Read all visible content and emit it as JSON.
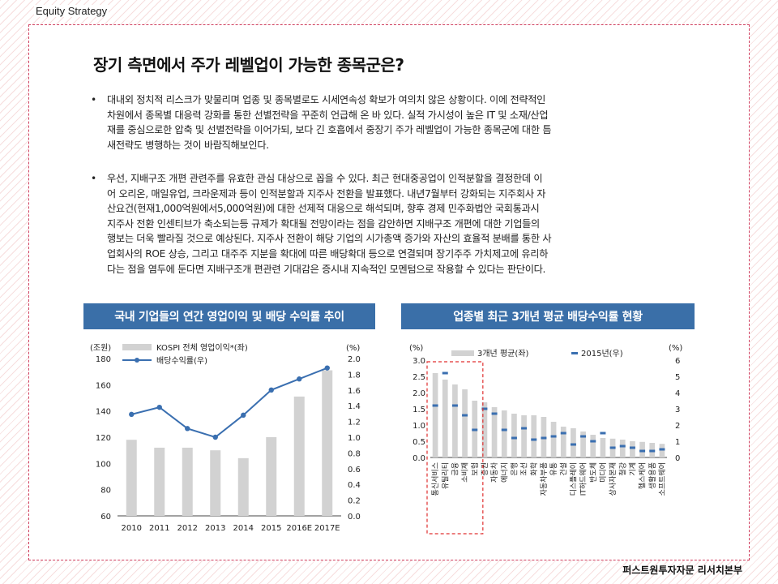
{
  "header": {
    "section_label": "Equity Strategy"
  },
  "title": "장기 측면에서 주가 레벨업이 가능한 종목군은?",
  "paragraphs": [
    {
      "bullet": "•",
      "lines": [
        "대내외 정치적 리스크가 맞물리며 업종 및 종목별로도 시세연속성 확보가 여의치 않은 상황이다. 이에 전략적인",
        "차원에서 종목별 대응력 강화를 통한 선별전략을 꾸준히 언급해 온 바 있다. 실적 가시성이 높은 IT 및 소재/산업",
        "재를 중심으로한 압축 및 선별전략을 이어가되, 보다 긴 호흡에서 중장기 주가 레벨업이 가능한 종목군에 대한 틈",
        "새전략도 병행하는 것이 바람직해보인다."
      ]
    },
    {
      "bullet": "•",
      "lines": [
        "우선, 지배구조 개편 관련주를 유효한 관심 대상으로 꼽을 수 있다. 최근 현대중공업이 인적분할을 결정한데 이",
        "어 오리온, 매일유업, 크라운제과 등이 인적분할과 지주사 전환을 발표했다. 내년7월부터 강화되는 지주회사 자",
        "산요건(현재1,000억원에서5,000억원)에 대한 선제적 대응으로 해석되며, 향후 경제 민주화법안 국회통과시",
        "지주사 전환 인센티브가 축소되는등 규제가 확대될 전망이라는 점을 감안하면 지배구조 개편에 대한 기업들의",
        "행보는 더욱 빨라질 것으로 예상된다. 지주사 전환이 해당 기업의 시가총액 증가와 자산의 효율적 분배를 통한 사",
        "업회사의 ROE 상승, 그리고 대주주 지분을 확대에 따른 배당확대 등으로 연결되며 장기주주 가치제고에 유리하",
        "다는 점을 염두에 둔다면 지배구조개 편관련 기대감은 증시내 지속적인 모멘텀으로 작용할 수 있다는 판단이다."
      ]
    }
  ],
  "charts": {
    "left": {
      "title": "국내 기업들의 연간 영업이익 및 배당 수익률 추이",
      "left_unit": "(조원)",
      "right_unit": "(%)",
      "legend_bar": "KOSPI 전체 영업이익*(좌)",
      "legend_line": "배당수익률(우)"
    },
    "right": {
      "title": "업종별 최근 3개년 평균 배당수익률 현황",
      "left_unit": "(%)",
      "right_unit": "(%)",
      "legend_bar": "3개년 평균(좌)",
      "legend_line": "2015년(우)"
    }
  },
  "chart_data": [
    {
      "type": "bar",
      "title": "국내 기업들의 연간 영업이익 및 배당 수익률 추이",
      "categories": [
        "2010",
        "2011",
        "2012",
        "2013",
        "2014",
        "2015",
        "2016E",
        "2017E"
      ],
      "ylim": [
        60,
        180
      ],
      "y_ticks": [
        60,
        80,
        100,
        120,
        140,
        160,
        180
      ],
      "y2lim": [
        0.0,
        2.0
      ],
      "y2_ticks": [
        "0.0",
        "0.2",
        "0.4",
        "0.6",
        "0.8",
        "1.0",
        "1.2",
        "1.4",
        "1.6",
        "1.8",
        "2.0"
      ],
      "series": [
        {
          "name": "KOSPI 전체 영업이익*(좌)",
          "kind": "bar",
          "axis": "left",
          "values": [
            118,
            112,
            112,
            110,
            104,
            120,
            151,
            171
          ]
        },
        {
          "name": "배당수익률(우)",
          "kind": "line",
          "axis": "right",
          "values": [
            1.29,
            1.38,
            1.11,
            1.0,
            1.28,
            1.6,
            1.74,
            1.88
          ]
        }
      ],
      "grid": false,
      "legend": "top-left",
      "colors": {
        "bar": "#d2d2d2",
        "line": "#3a6fb0"
      }
    },
    {
      "type": "bar",
      "title": "업종별 최근 3개년 평균 배당수익률 현황",
      "categories": [
        "통신서비스",
        "유틸리티",
        "금융",
        "소비재",
        "보험",
        "증권",
        "자동차",
        "에너지",
        "은행",
        "조선",
        "화학",
        "자동차부품",
        "유통",
        "건설",
        "디스플레이",
        "IT하드웨어",
        "반도체",
        "미디어",
        "상사자본재",
        "철강",
        "기계",
        "헬스케어",
        "생활용품",
        "소프트웨어"
      ],
      "ylim": [
        0.0,
        3.0
      ],
      "y_ticks": [
        "0.0",
        "0.5",
        "1.0",
        "1.5",
        "2.0",
        "2.5",
        "3.0"
      ],
      "y2lim": [
        0,
        6
      ],
      "y2_ticks": [
        0,
        1,
        2,
        3,
        4,
        5,
        6
      ],
      "series": [
        {
          "name": "3개년 평균(좌)",
          "kind": "bar",
          "axis": "left",
          "values": [
            2.6,
            2.4,
            2.25,
            2.1,
            1.75,
            1.7,
            1.55,
            1.45,
            1.35,
            1.3,
            1.3,
            1.25,
            1.1,
            0.95,
            0.9,
            0.8,
            0.7,
            0.6,
            0.58,
            0.55,
            0.5,
            0.48,
            0.45,
            0.42
          ]
        },
        {
          "name": "2015년(우)",
          "kind": "marker",
          "axis": "right",
          "values": [
            3.2,
            5.2,
            3.2,
            2.6,
            1.7,
            3.0,
            2.7,
            1.7,
            1.2,
            1.8,
            1.1,
            1.2,
            1.3,
            1.5,
            0.8,
            1.3,
            1.0,
            1.5,
            0.6,
            0.7,
            0.6,
            0.4,
            0.4,
            0.5
          ]
        }
      ],
      "highlight_range": [
        0,
        4
      ],
      "legend": "top",
      "colors": {
        "bar": "#d2d2d2",
        "marker": "#3a6fb0",
        "highlight": "#e03030"
      }
    }
  ],
  "footer": "퍼스트원투자자문 리서치본부"
}
